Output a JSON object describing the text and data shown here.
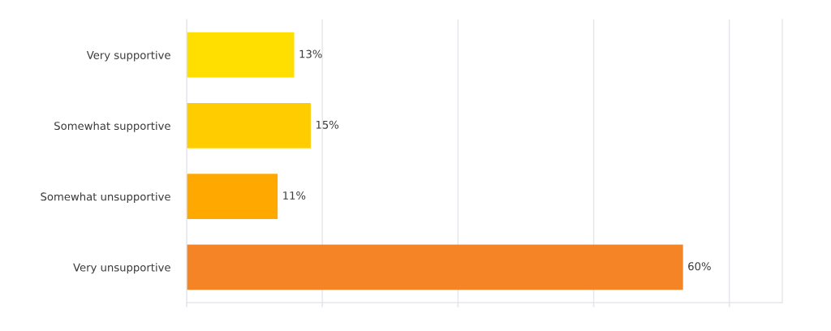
{
  "chart_data": {
    "type": "bar",
    "orientation": "horizontal",
    "categories": [
      "Very supportive",
      "Somewhat supportive",
      "Somewhat unsupportive",
      "Very unsupportive"
    ],
    "values": [
      13,
      15,
      11,
      60
    ],
    "colors": [
      "#ffdf00",
      "#ffcc00",
      "#ffa800",
      "#f48426"
    ],
    "value_labels": [
      "13%",
      "15%",
      "11%",
      "60%"
    ],
    "xlim": [
      0,
      72
    ],
    "xticks": [
      {
        "value": 0,
        "label": null
      },
      {
        "value": 16.4,
        "label": null
      },
      {
        "value": 32.8,
        "label": null
      },
      {
        "value": 49.2,
        "label": null
      },
      {
        "value": 65.6,
        "label": null
      }
    ],
    "grid": "x"
  }
}
